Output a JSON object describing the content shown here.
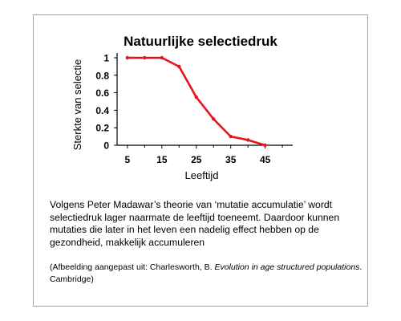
{
  "chart_data": {
    "type": "line",
    "title": "Natuurlijke selectiedruk",
    "xlabel": "Leeftijd",
    "ylabel": "Sterkte van selectie",
    "xticks": [
      5,
      15,
      25,
      35,
      45
    ],
    "yticks": [
      "0",
      "0.2",
      "0.4",
      "0.6",
      "0.8",
      "1"
    ],
    "xlim": [
      2,
      53
    ],
    "ylim": [
      0,
      1
    ],
    "color": "#e8141b",
    "series": [
      {
        "x": [
          5,
          10,
          15,
          20,
          25,
          30,
          35,
          40,
          45
        ],
        "y": [
          1,
          1,
          1,
          0.9,
          0.55,
          0.3,
          0.1,
          0.06,
          0
        ]
      }
    ]
  },
  "caption": {
    "text": "Volgens Peter Madawar’s theorie van ‘mutatie accumulatie’ wordt selectiedruk lager naarmate de leeftijd toeneemt. Daardoor kunnen mutaties die later in het leven een nadelig effect hebben op de gezondheid, makkelijk accumuleren"
  },
  "source": {
    "prefix": "(Afbeelding aangepast uit: Charlesworth, B. ",
    "title": "Evolution in age structured populations",
    "suffix": ". Cambridge)"
  }
}
